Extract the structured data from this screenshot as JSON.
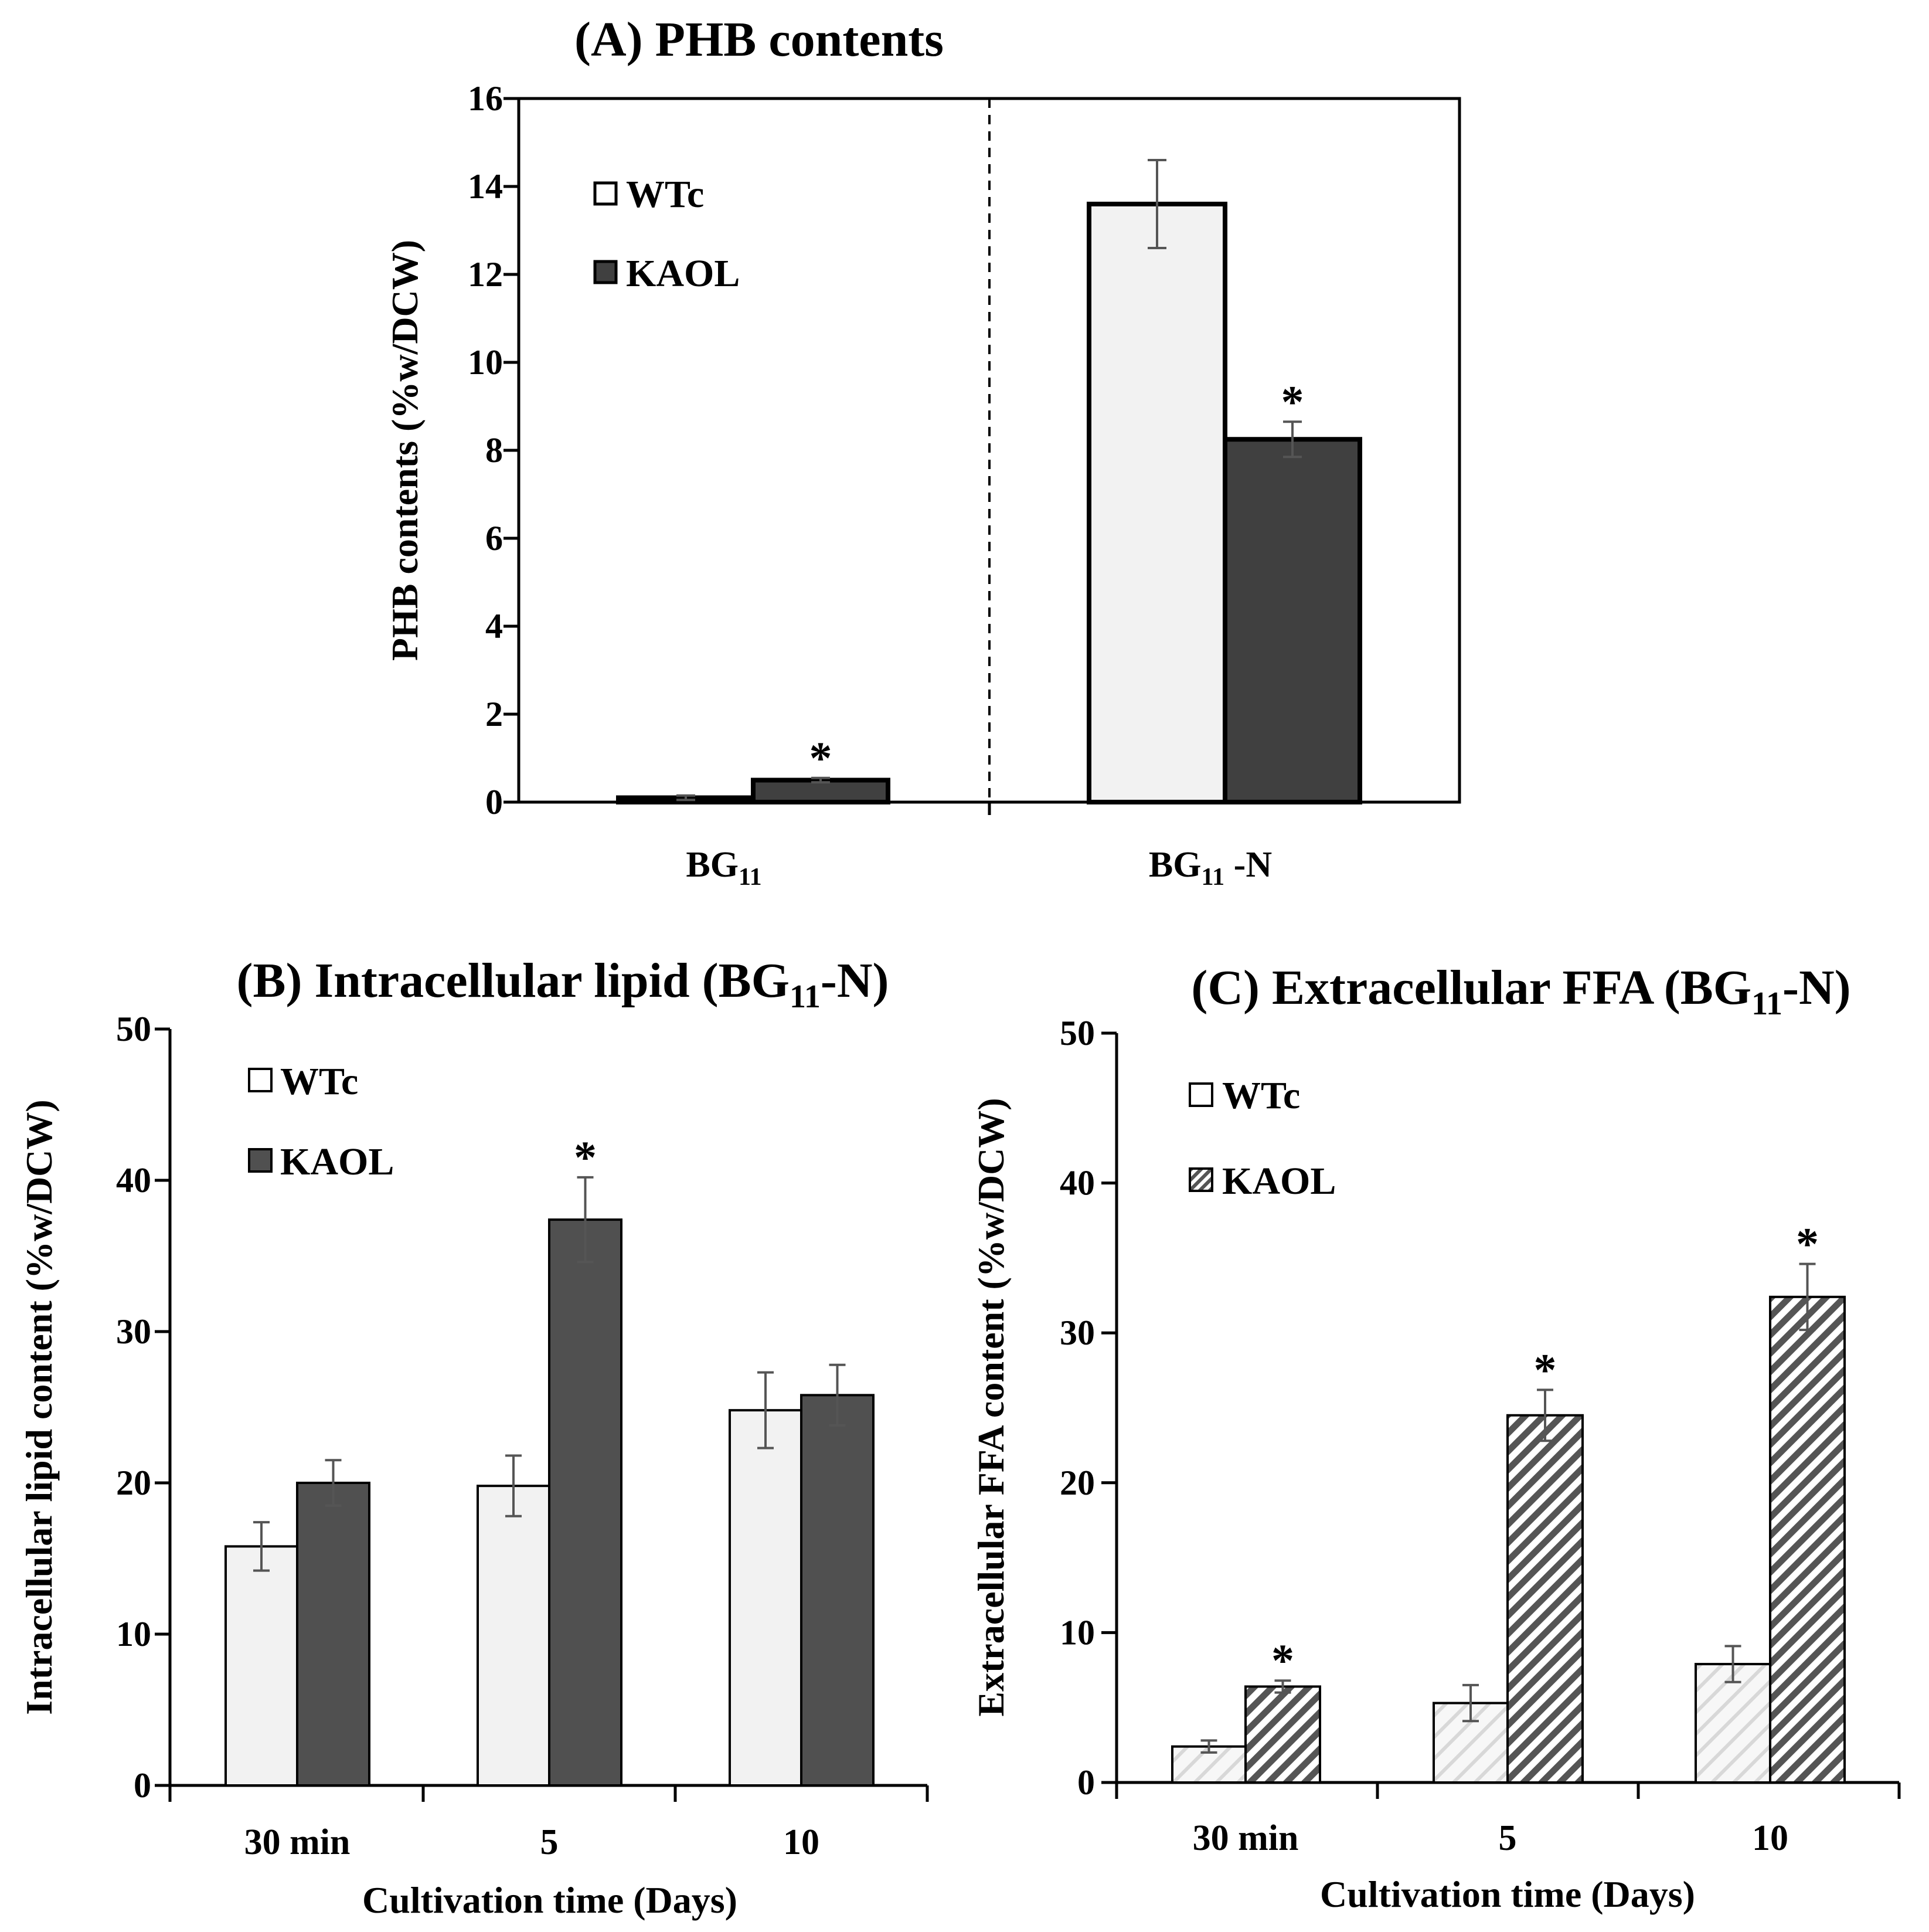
{
  "colors": {
    "wt_fill": "#f2f2f2",
    "kaol_fill": "#404040",
    "kaol_fill_b": "#505050",
    "hatch_kaol": "#555555",
    "hatch_wt": "#d8d8d8",
    "stroke": "#000000",
    "errorbar": "#555555"
  },
  "chart_data": [
    {
      "id": "A",
      "type": "bar",
      "title": {
        "prefix": "(A)",
        "text": "PHB contents"
      },
      "ylabel": "PHB contents (%w/DCW)",
      "xlabel": "",
      "ylim": [
        0,
        16
      ],
      "yticks": [
        "0",
        "2",
        "4",
        "6",
        "8",
        "10",
        "12",
        "14",
        "16"
      ],
      "categories": [
        {
          "main": "BG",
          "sub": "11",
          "suffix": ""
        },
        {
          "main": "BG",
          "sub": "11",
          "suffix": " -N"
        }
      ],
      "divider": "dashed line between BG11 and BG11 -N",
      "legend_position": "top-left",
      "series": [
        {
          "name": "WTc",
          "values": [
            0.1,
            13.6
          ],
          "errors": [
            0.05,
            1.0
          ],
          "significant": [
            false,
            false
          ]
        },
        {
          "name": "KAOL",
          "values": [
            0.5,
            8.25
          ],
          "errors": [
            0.05,
            0.4
          ],
          "significant": [
            true,
            true
          ]
        }
      ],
      "annotations": {
        "star": "*"
      }
    },
    {
      "id": "B",
      "type": "bar",
      "title": {
        "prefix": "(B)",
        "text": "Intracellular lipid (BG",
        "sub": "11",
        "suffix": "-N)"
      },
      "ylabel": "Intracellular lipid content (%w/DCW)",
      "xlabel": "Cultivation time (Days)",
      "ylim": [
        0,
        50
      ],
      "yticks": [
        "0",
        "10",
        "20",
        "30",
        "40",
        "50"
      ],
      "categories": [
        "30 min",
        "5",
        "10"
      ],
      "legend_position": "top-left",
      "series": [
        {
          "name": "WTc",
          "values": [
            15.8,
            19.8,
            24.8
          ],
          "errors": [
            1.6,
            2.0,
            2.5
          ],
          "significant": [
            false,
            false,
            false
          ]
        },
        {
          "name": "KAOL",
          "values": [
            20.0,
            37.4,
            25.8
          ],
          "errors": [
            1.5,
            2.8,
            2.0
          ],
          "significant": [
            false,
            true,
            false
          ]
        }
      ],
      "annotations": {
        "star": "*"
      }
    },
    {
      "id": "C",
      "type": "bar",
      "title": {
        "prefix": "(C)",
        "text": "Extracellular FFA (BG",
        "sub": "11",
        "suffix": "-N)"
      },
      "ylabel": "Extracellular FFA content (%w/DCW)",
      "xlabel": "Cultivation time (Days)",
      "ylim": [
        0,
        50
      ],
      "yticks": [
        "0",
        "10",
        "20",
        "30",
        "40",
        "50"
      ],
      "categories": [
        "30 min",
        "5",
        "10"
      ],
      "legend_position": "top-left",
      "series": [
        {
          "name": "WTc",
          "values": [
            2.4,
            5.3,
            7.9
          ],
          "errors": [
            0.4,
            1.2,
            1.2
          ],
          "significant": [
            false,
            false,
            false
          ]
        },
        {
          "name": "KAOL",
          "values": [
            6.4,
            24.5,
            32.4
          ],
          "errors": [
            0.4,
            1.7,
            2.2
          ],
          "significant": [
            true,
            true,
            true
          ]
        }
      ],
      "annotations": {
        "star": "*"
      }
    }
  ]
}
